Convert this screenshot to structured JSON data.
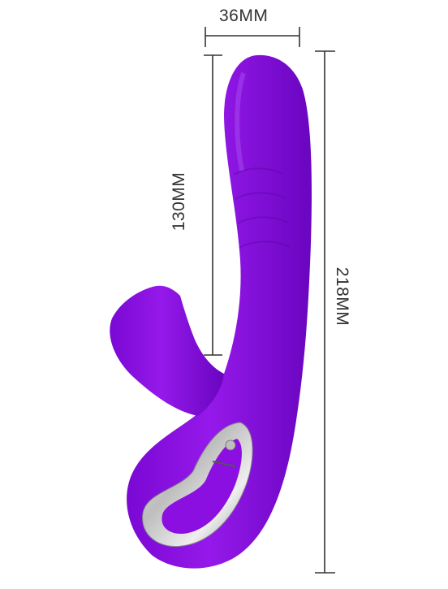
{
  "dimensions": {
    "width_label": "36MM",
    "insertable_length_label": "130MM",
    "total_length_label": "218MM"
  },
  "colors": {
    "body": "#8a0fe0",
    "body_dark": "#6a05c0",
    "body_light": "#a43cf0",
    "handle_metal": "#cfcfcf",
    "dimension_lines": "#333333"
  }
}
